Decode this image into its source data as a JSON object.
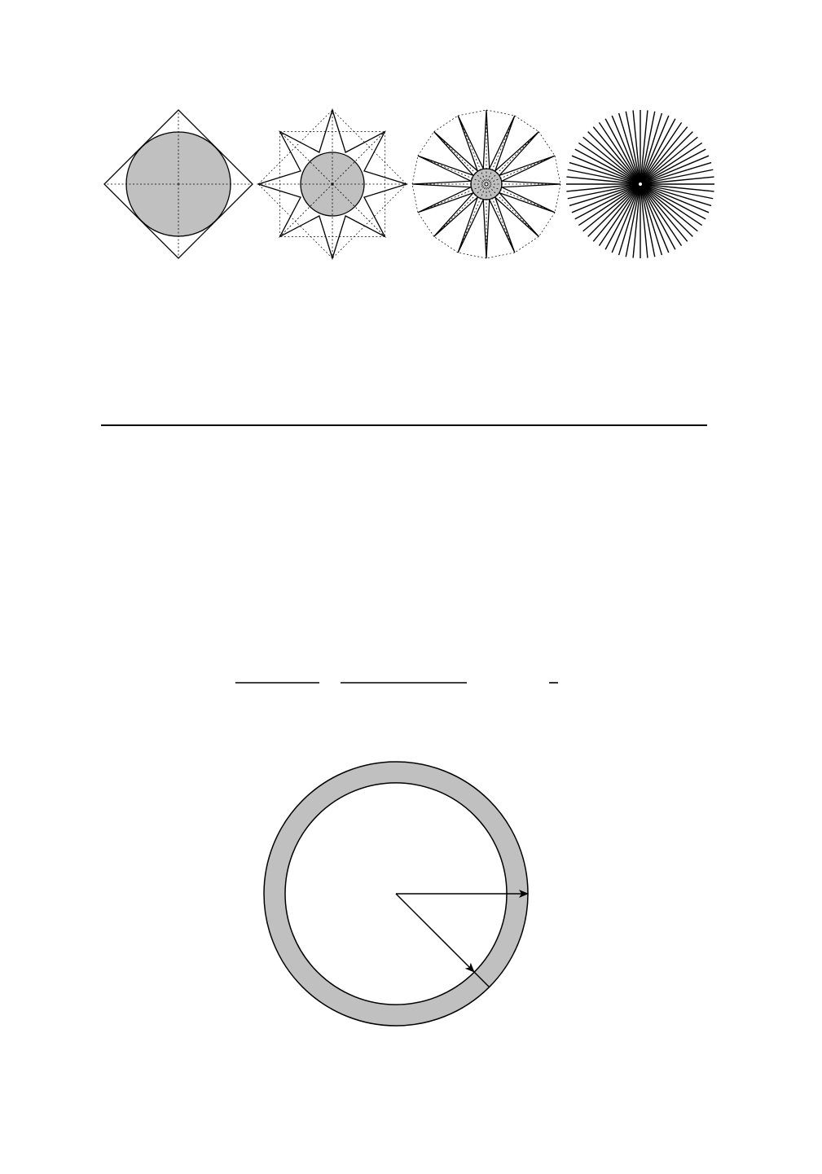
{
  "diagram": {
    "star_figures": [
      {
        "id": "star-4",
        "points": 4
      },
      {
        "id": "star-8",
        "points": 8
      },
      {
        "id": "star-16",
        "points": 16
      },
      {
        "id": "star-64",
        "points": 64
      }
    ],
    "annulus_figure": {
      "arrows": 2
    }
  },
  "colors": {
    "fill_gray": "#c0c0c0",
    "stroke": "#000000",
    "background": "#ffffff"
  }
}
